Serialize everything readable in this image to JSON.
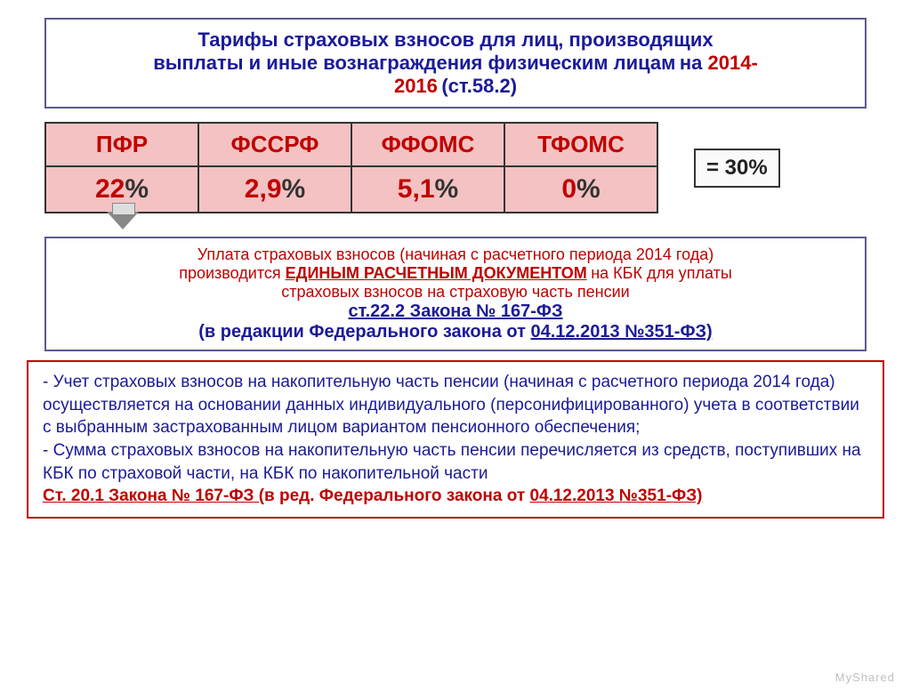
{
  "title": {
    "line1": "Тарифы страховых взносов для лиц, производящих",
    "line2_a": "выплаты и иные вознаграждения физическим лицам",
    "line2_b": " на ",
    "year": "2014-",
    "line3_a": "2016",
    "line3_b": " (ст.58.2)"
  },
  "rates_table": {
    "headers": [
      "ПФР",
      "ФССРФ",
      "ФФОМС",
      "ТФОМС"
    ],
    "values_num": [
      "22",
      "2,9",
      "5,1",
      "0"
    ],
    "pct": "%",
    "total": "= 30%",
    "header_bg": "#f4c2c2",
    "header_color": "#c00000",
    "value_color": "#c00000",
    "border_color": "#333333"
  },
  "middle_box": {
    "l1": "Уплата страховых взносов (начиная с расчетного периода 2014 года)",
    "l2a": "производится ",
    "l2b": "ЕДИНЫМ РАСЧЕТНЫМ ДОКУМЕНТОМ",
    "l2c": " на КБК для  уплаты",
    "l3": "страховых взносов на страховую часть пенсии",
    "l4": "ст.22.2 Закона № 167-ФЗ",
    "l5a": "(в редакции Федерального закона от ",
    "l5b": "04.12.2013 №351-ФЗ)"
  },
  "bottom_box": {
    "p1": "- Учет страховых взносов на накопительную часть пенсии (начиная с расчетного периода 2014 года) осуществляется на основании данных индивидуального (персонифицированного) учета в соответствии с выбранным застрахованным лицом вариантом пенсионного обеспечения;",
    "p2": "- Сумма страховых взносов на накопительную часть пенсии перечисляется из средств, поступивших на КБК по страховой части, на КБК  по накопительной части",
    "cite_a": "Ст. 20.1 Закона № 167-ФЗ (",
    "cite_b": "в ред. Федерального закона от ",
    "cite_c": "04.12.2013 №351-ФЗ)"
  },
  "watermark": "MyShared"
}
